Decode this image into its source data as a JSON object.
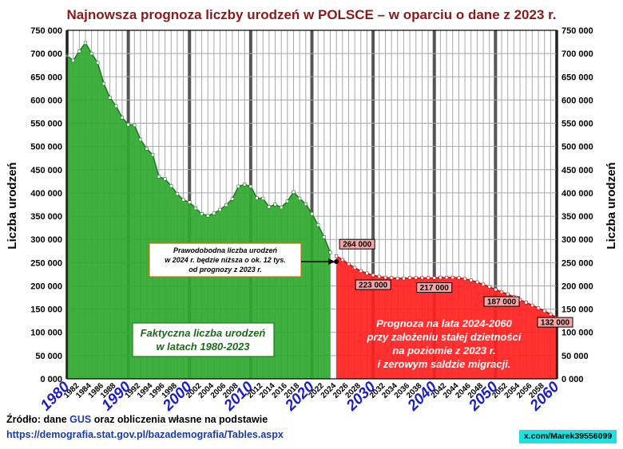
{
  "title": "Najnowsza prognoza liczby urodzeń w POLSCE – w oparciu o dane z 2023 r.",
  "ylabel": "Liczba urodzeń",
  "source_prefix": "Źródło: dane ",
  "source_gus": "GUS",
  "source_suffix": " oraz obliczenia własne na podstawie",
  "source_url": "https://demografia.stat.gov.pl/bazademografia/Tables.aspx",
  "credit": "x.com/Marek39556099",
  "chart_data": {
    "type": "area",
    "title": "Najnowsza prognoza liczby urodzeń w POLSCE – w oparciu o dane z 2023 r.",
    "ylabel": "Liczba urodzeń",
    "xlabel": "",
    "ylim": [
      0,
      750000
    ],
    "xlim": [
      1980,
      2060
    ],
    "y_ticks": [
      "0 000",
      "50 000",
      "100 000",
      "150 000",
      "200 000",
      "250 000",
      "300 000",
      "350 000",
      "400 000",
      "450 000",
      "500 000",
      "550 000",
      "600 000",
      "650 000",
      "700 000",
      "750 000"
    ],
    "x_major_ticks": [
      "1980",
      "1990",
      "2000",
      "2010",
      "2020",
      "2030",
      "2040",
      "2050",
      "2060"
    ],
    "x_minor_ticks": [
      "1982",
      "1984",
      "1986",
      "1988",
      "1992",
      "1994",
      "1996",
      "1998",
      "2002",
      "2004",
      "2006",
      "2008",
      "2012",
      "2014",
      "2016",
      "2018",
      "2022",
      "2024",
      "2026",
      "2028",
      "2032",
      "2034",
      "2036",
      "2038",
      "2042",
      "2044",
      "2046",
      "2048",
      "2052",
      "2054",
      "2056",
      "2058"
    ],
    "grid": true,
    "series": [
      {
        "color": "#2fa82f",
        "x": [
          1980,
          1981,
          1982,
          1983,
          1984,
          1985,
          1986,
          1987,
          1988,
          1989,
          1990,
          1991,
          1992,
          1993,
          1994,
          1995,
          1996,
          1997,
          1998,
          1999,
          2000,
          2001,
          2002,
          2003,
          2004,
          2005,
          2006,
          2007,
          2008,
          2009,
          2010,
          2011,
          2012,
          2013,
          2014,
          2015,
          2016,
          2017,
          2018,
          2019,
          2020,
          2021,
          2022,
          2023
        ],
        "values": [
          695000,
          685000,
          705000,
          723000,
          700000,
          680000,
          635000,
          605000,
          587000,
          562000,
          547000,
          546000,
          515000,
          495000,
          482000,
          435000,
          430000,
          415000,
          398000,
          385000,
          380000,
          367000,
          355000,
          351000,
          356000,
          364000,
          374000,
          387000,
          414000,
          418000,
          414000,
          389000,
          388000,
          370000,
          375000,
          369000,
          382000,
          402000,
          388000,
          376000,
          355000,
          331000,
          305000,
          272000
        ]
      },
      {
        "color": "#ff2020",
        "x": [
          2024,
          2025,
          2026,
          2027,
          2028,
          2029,
          2030,
          2031,
          2032,
          2033,
          2034,
          2035,
          2036,
          2037,
          2038,
          2039,
          2040,
          2041,
          2042,
          2043,
          2044,
          2045,
          2046,
          2047,
          2048,
          2049,
          2050,
          2051,
          2052,
          2053,
          2054,
          2055,
          2056,
          2057,
          2058,
          2059,
          2060
        ],
        "values": [
          264000,
          256000,
          247000,
          239000,
          232000,
          227000,
          223000,
          220000,
          218000,
          217000,
          216000,
          216000,
          217000,
          217000,
          217000,
          217000,
          217000,
          218000,
          218000,
          218000,
          217000,
          215000,
          212000,
          208000,
          203000,
          198000,
          192000,
          187000,
          182000,
          176000,
          170000,
          164000,
          158000,
          152000,
          146000,
          139000,
          132000
        ]
      }
    ],
    "data_labels": [
      {
        "year": 2024,
        "value": 264000,
        "text": "264 000"
      },
      {
        "year": 2030,
        "value": 223000,
        "text": "223 000"
      },
      {
        "year": 2040,
        "value": 217000,
        "text": "217 000"
      },
      {
        "year": 2051,
        "value": 187000,
        "text": "187 000"
      },
      {
        "year": 2060,
        "value": 132000,
        "text": "132 000"
      }
    ],
    "annotations": {
      "green": [
        "Faktyczna liczba urodzeń",
        "w latach 1980-2023"
      ],
      "red": [
        "Prognoza na lata 2024-2060",
        "przy założeniu stałej dzietności",
        "na poziomie z 2023 r.",
        "i zerowym saldzie migracji."
      ],
      "box": [
        "Prawodobodna liczba urodzeń",
        "w 2024 r. będzie niższa o ok. 12 tys.",
        "od prognozy z 2023 r."
      ]
    }
  }
}
